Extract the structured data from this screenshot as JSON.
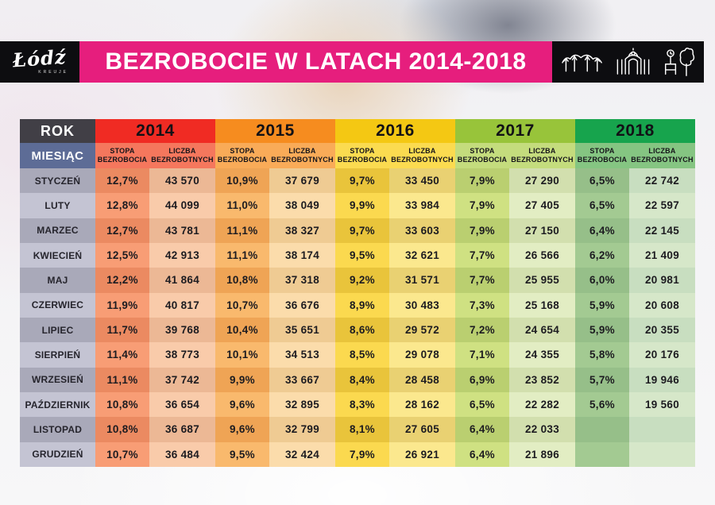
{
  "header": {
    "logo_text": "Łódź",
    "logo_sub": "KREUJE",
    "title": "BEZROBOCIE W LATACH 2014-2018",
    "landmark_icons": [
      "viaduct-icon",
      "palace-gate-icon",
      "park-icon"
    ]
  },
  "colors": {
    "accent_pink": "#e61e7d",
    "bar_black": "#0d0d10",
    "rok_bg": "#413f46",
    "miesiac_bg": "#5d6c96",
    "year_bands": [
      "#f02b23",
      "#f68c1f",
      "#f4c813",
      "#98c43a",
      "#17a44d"
    ],
    "sub_bands": [
      "#f5775d",
      "#f9ab58",
      "#fbdb50",
      "#c4dc7d",
      "#85c582"
    ],
    "month_shades": [
      "#a9a9b9",
      "#c4c4d3"
    ],
    "stopa_shades": [
      [
        "#eb8a61",
        "#f89d75"
      ],
      [
        "#efa455",
        "#f9b96d"
      ],
      [
        "#e9c43b",
        "#fbd94f"
      ],
      [
        "#bacf70",
        "#cfe182"
      ],
      [
        "#96bf89",
        "#a3ca92"
      ]
    ],
    "liczba_shades": [
      [
        "#ecb895",
        "#f9cbaa"
      ],
      [
        "#efcb93",
        "#fbdcab"
      ],
      [
        "#e9d172",
        "#fbe88e"
      ],
      [
        "#d2dfae",
        "#e2edc3"
      ],
      [
        "#c8dec0",
        "#d6e7c9"
      ]
    ]
  },
  "chart_data": {
    "type": "table",
    "title": "BEZROBOCIE W LATACH 2014-2018",
    "col_header": "ROK",
    "row_header": "MIESIĄC",
    "metrics": [
      "STOPA BEZROBOCIA",
      "LICZBA BEZROBOTNYCH"
    ],
    "years": [
      "2014",
      "2015",
      "2016",
      "2017",
      "2018"
    ],
    "months": [
      "STYCZEŃ",
      "LUTY",
      "MARZEC",
      "KWIECIEŃ",
      "MAJ",
      "CZERWIEC",
      "LIPIEC",
      "SIERPIEŃ",
      "WRZESIEŃ",
      "PAŹDZIERNIK",
      "LISTOPAD",
      "GRUDZIEŃ"
    ],
    "series": [
      {
        "year": "2014",
        "stopa": [
          "12,7%",
          "12,8%",
          "12,7%",
          "12,5%",
          "12,2%",
          "11,9%",
          "11,7%",
          "11,4%",
          "11,1%",
          "10,8%",
          "10,8%",
          "10,7%"
        ],
        "liczba": [
          "43 570",
          "44 099",
          "43 781",
          "42 913",
          "41 864",
          "40 817",
          "39 768",
          "38 773",
          "37 742",
          "36 654",
          "36 687",
          "36 484"
        ]
      },
      {
        "year": "2015",
        "stopa": [
          "10,9%",
          "11,0%",
          "11,1%",
          "11,1%",
          "10,8%",
          "10,7%",
          "10,4%",
          "10,1%",
          "9,9%",
          "9,6%",
          "9,6%",
          "9,5%"
        ],
        "liczba": [
          "37 679",
          "38 049",
          "38 327",
          "38 174",
          "37 318",
          "36 676",
          "35 651",
          "34 513",
          "33 667",
          "32 895",
          "32 799",
          "32 424"
        ]
      },
      {
        "year": "2016",
        "stopa": [
          "9,7%",
          "9,9%",
          "9,7%",
          "9,5%",
          "9,2%",
          "8,9%",
          "8,6%",
          "8,5%",
          "8,4%",
          "8,3%",
          "8,1%",
          "7,9%"
        ],
        "liczba": [
          "33 450",
          "33 984",
          "33 603",
          "32 621",
          "31 571",
          "30 483",
          "29 572",
          "29 078",
          "28 458",
          "28 162",
          "27 605",
          "26 921"
        ]
      },
      {
        "year": "2017",
        "stopa": [
          "7,9%",
          "7,9%",
          "7,9%",
          "7,7%",
          "7,7%",
          "7,3%",
          "7,2%",
          "7,1%",
          "6,9%",
          "6,5%",
          "6,4%",
          "6,4%"
        ],
        "liczba": [
          "27 290",
          "27 405",
          "27 150",
          "26 566",
          "25 955",
          "25 168",
          "24 654",
          "24 355",
          "23 852",
          "22 282",
          "22 033",
          "21 896"
        ]
      },
      {
        "year": "2018",
        "stopa": [
          "6,5%",
          "6,5%",
          "6,4%",
          "6,2%",
          "6,0%",
          "5,9%",
          "5,9%",
          "5,8%",
          "5,7%",
          "5,6%",
          "",
          ""
        ],
        "liczba": [
          "22 742",
          "22 597",
          "22 145",
          "21 409",
          "20 981",
          "20 608",
          "20 355",
          "20 176",
          "19 946",
          "19 560",
          "",
          ""
        ]
      }
    ]
  }
}
